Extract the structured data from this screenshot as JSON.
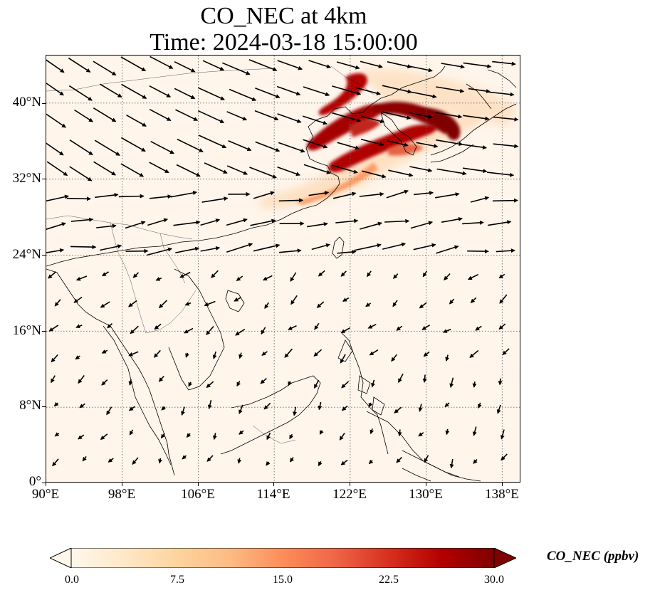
{
  "title": {
    "line1": "CO_NEC at 4km",
    "line2": "Time: 2024-03-18 15:00:00"
  },
  "map": {
    "lon_range": [
      90,
      140
    ],
    "lat_range": [
      0,
      45
    ],
    "gridlines": "dotted",
    "background_color": "#fff5eb",
    "coastline_color": "#000000",
    "plume_colors": [
      "#fdd0a2",
      "#f16913",
      "#b30000",
      "#7f0000"
    ]
  },
  "axes": {
    "y_ticks": [
      "0°",
      "8°N",
      "16°N",
      "24°N",
      "32°N",
      "40°N"
    ],
    "x_ticks": [
      "90°E",
      "98°E",
      "106°E",
      "114°E",
      "122°E",
      "130°E",
      "138°E"
    ]
  },
  "colorbar": {
    "label": "CO_NEC (ppbv)",
    "ticks": [
      "0.0",
      "7.5",
      "15.0",
      "22.5",
      "30.0"
    ],
    "min": 0,
    "max": 30,
    "extend": "both",
    "colormap": "OrRd",
    "stops": [
      "#fff7ec",
      "#fee8c8",
      "#fdd49e",
      "#fdbb84",
      "#fc8d59",
      "#ef6548",
      "#d7301f",
      "#b30000",
      "#7f0000"
    ]
  }
}
